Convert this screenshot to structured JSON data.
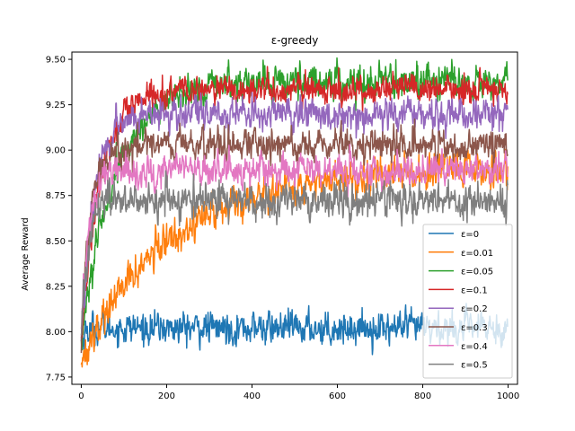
{
  "chart_data": {
    "type": "line",
    "title": "ε-greedy",
    "xlabel": "",
    "ylabel": "Average Reward",
    "xlim": [
      -22,
      1022
    ],
    "ylim": [
      7.71,
      9.54
    ],
    "x_ticks": [
      0,
      200,
      400,
      600,
      800,
      1000
    ],
    "x_tick_labels": [
      "0",
      "200",
      "400",
      "600",
      "800",
      "1000"
    ],
    "y_ticks": [
      7.75,
      8.0,
      8.25,
      8.5,
      8.75,
      9.0,
      9.25,
      9.5
    ],
    "y_tick_labels": [
      "7.75",
      "8.00",
      "8.25",
      "8.50",
      "8.75",
      "9.00",
      "9.25",
      "9.50"
    ],
    "grid": false,
    "legend_position": "lower-right",
    "steps": 1000,
    "series": [
      {
        "name": "ε=0",
        "color": "#1f77b4",
        "start": 7.95,
        "plateau": 8.02,
        "tau": 10,
        "noise": 0.045
      },
      {
        "name": "ε=0.01",
        "color": "#ff7f0e",
        "start": 7.85,
        "plateau": 8.9,
        "tau": 210,
        "noise": 0.05
      },
      {
        "name": "ε=0.05",
        "color": "#2ca02c",
        "start": 7.95,
        "plateau": 9.38,
        "tau": 80,
        "noise": 0.045
      },
      {
        "name": "ε=0.1",
        "color": "#d62728",
        "start": 7.95,
        "plateau": 9.33,
        "tau": 45,
        "noise": 0.04
      },
      {
        "name": "ε=0.2",
        "color": "#9467bd",
        "start": 7.95,
        "plateau": 9.2,
        "tau": 30,
        "noise": 0.045
      },
      {
        "name": "ε=0.3",
        "color": "#8c564b",
        "start": 7.95,
        "plateau": 9.03,
        "tau": 22,
        "noise": 0.045
      },
      {
        "name": "ε=0.4",
        "color": "#e377c2",
        "start": 7.95,
        "plateau": 8.89,
        "tau": 18,
        "noise": 0.045
      },
      {
        "name": "ε=0.5",
        "color": "#7f7f7f",
        "start": 7.95,
        "plateau": 8.72,
        "tau": 15,
        "noise": 0.05
      }
    ]
  }
}
